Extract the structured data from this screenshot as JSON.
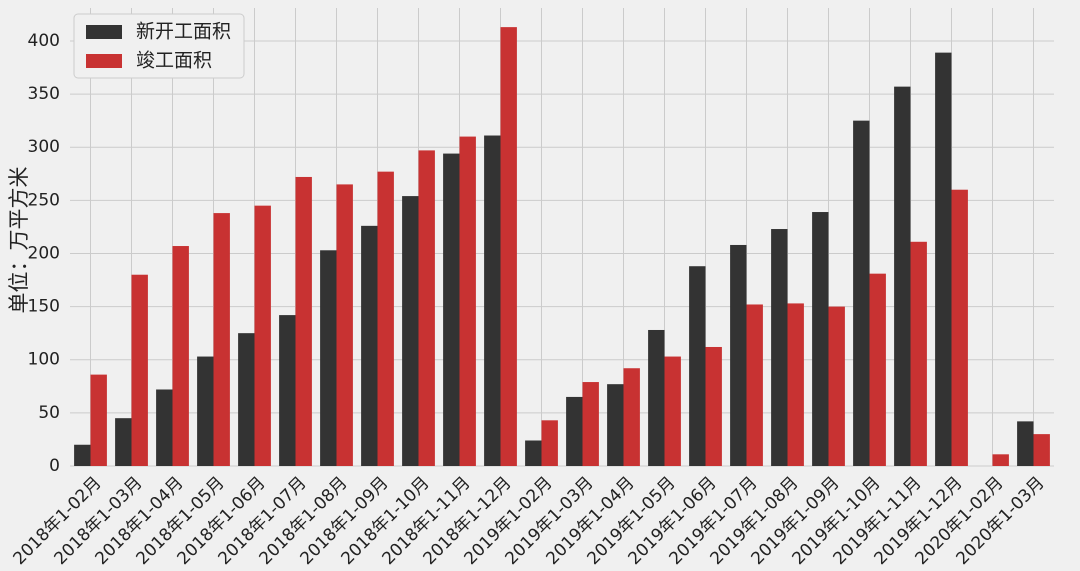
{
  "chart_data": {
    "type": "bar",
    "y_label": "单位：万平方米",
    "categories": [
      "2018年1-02月",
      "2018年1-03月",
      "2018年1-04月",
      "2018年1-05月",
      "2018年1-06月",
      "2018年1-07月",
      "2018年1-08月",
      "2018年1-09月",
      "2018年1-10月",
      "2018年1-11月",
      "2018年1-12月",
      "2019年1-02月",
      "2019年1-03月",
      "2019年1-04月",
      "2019年1-05月",
      "2019年1-06月",
      "2019年1-07月",
      "2019年1-08月",
      "2019年1-09月",
      "2019年1-10月",
      "2019年1-11月",
      "2019年1-12月",
      "2020年1-02月",
      "2020年1-03月"
    ],
    "series": [
      {
        "name": "新开工面积",
        "color": "#333333",
        "values": [
          20,
          45,
          72,
          103,
          125,
          142,
          203,
          226,
          254,
          294,
          311,
          24,
          65,
          77,
          128,
          188,
          208,
          223,
          239,
          325,
          357,
          389,
          null,
          42
        ]
      },
      {
        "name": "竣工面积",
        "color": "#c83232",
        "values": [
          86,
          180,
          207,
          238,
          245,
          272,
          265,
          277,
          297,
          310,
          413,
          43,
          79,
          92,
          103,
          112,
          152,
          153,
          150,
          181,
          211,
          260,
          11,
          30
        ]
      }
    ],
    "ylim": [
      0,
      431
    ],
    "yticks": [
      0,
      50,
      100,
      150,
      200,
      250,
      300,
      350,
      400
    ],
    "grid": true,
    "legend": "upper left"
  }
}
